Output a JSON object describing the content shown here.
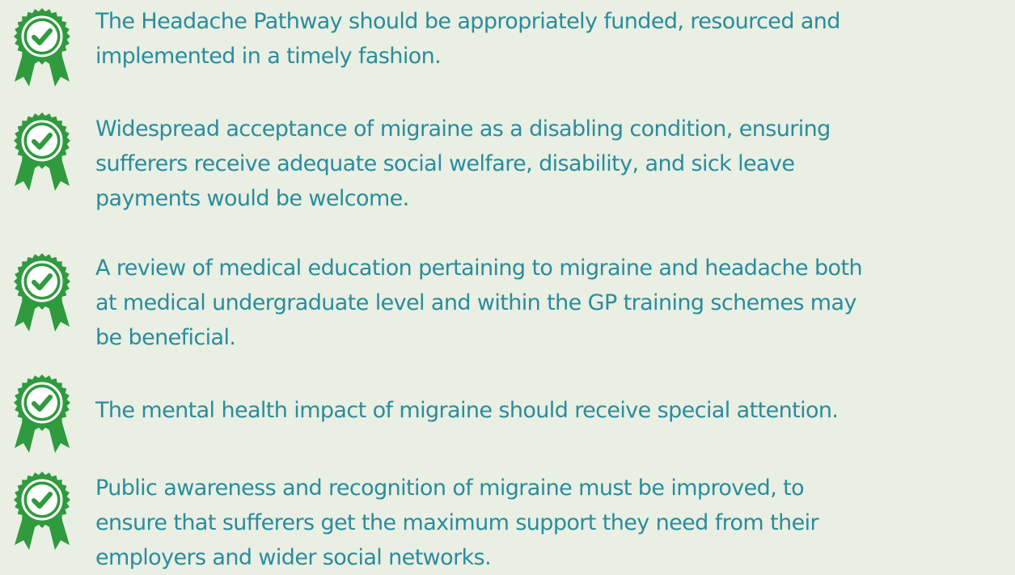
{
  "items": [
    {
      "lines": [
        "The Headache Pathway should be appropriately funded, resourced and",
        "implemented in a timely fashion."
      ]
    },
    {
      "lines": [
        "Widespread acceptance of migraine as a disabling condition, ensuring",
        "sufferers receive adequate social welfare, disability, and sick leave",
        "payments would be welcome."
      ]
    },
    {
      "lines": [
        "A review of medical education pertaining to migraine and headache both",
        "at medical undergraduate level and within the GP training schemes may",
        "be beneficial."
      ]
    },
    {
      "lines": [
        "The mental health impact of migraine should receive special attention."
      ]
    },
    {
      "lines": [
        "Public awareness and recognition of migraine must be improved, to",
        "ensure that sufferers get the maximum support they need from their",
        "employers and wider social networks."
      ]
    }
  ]
}
